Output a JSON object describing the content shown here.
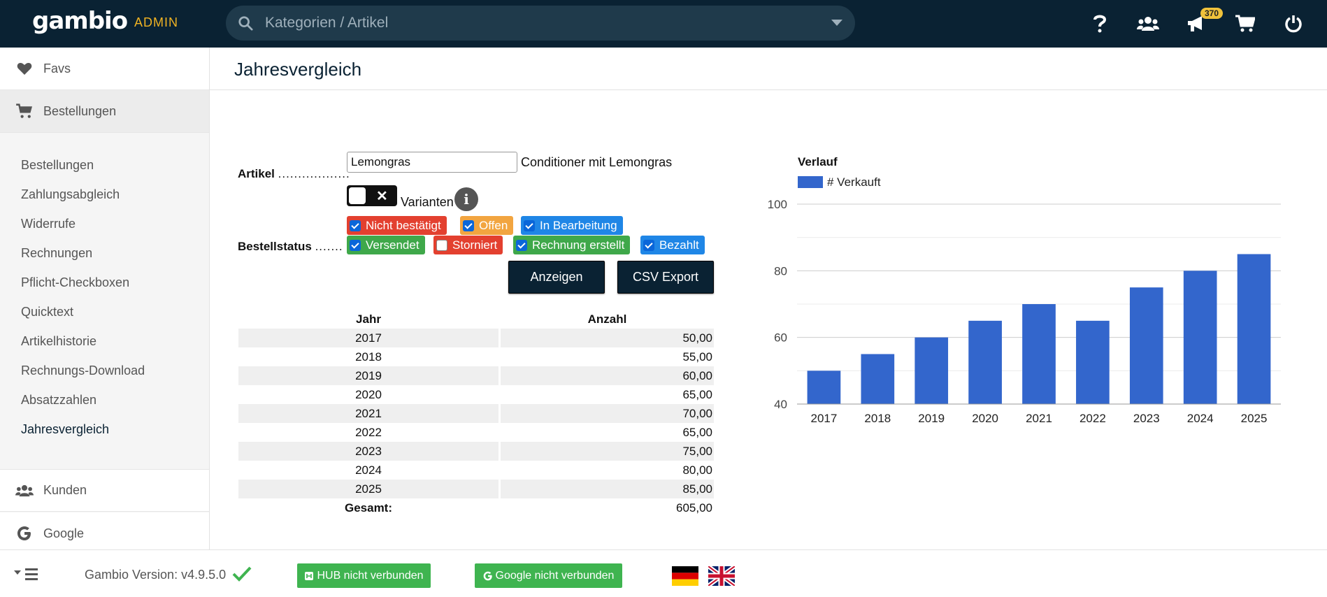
{
  "header": {
    "logo": "gambio",
    "admin_label": "ADMIN",
    "search_placeholder": "Kategorien / Artikel",
    "notification_count": "370"
  },
  "sidebar": {
    "favs": "Favs",
    "bestellungen": "Bestellungen",
    "sub_items": [
      "Bestellungen",
      "Zahlungsabgleich",
      "Widerrufe",
      "Rechnungen",
      "Pflicht-Checkboxen",
      "Quicktext",
      "Artikelhistorie",
      "Rechnungs-Download",
      "Absatzzahlen",
      "Jahresvergleich"
    ],
    "kunden": "Kunden",
    "google": "Google"
  },
  "page": {
    "title": "Jahresvergleich",
    "artikel_label": "Artikel",
    "artikel_dots": "..................",
    "artikel_value": "Lemongras",
    "artikel_desc": "Conditioner mit Lemongras",
    "varianten_label": "Varianten",
    "bestellstatus_label": "Bestellstatus",
    "bestellstatus_dots": ".......",
    "status_chips": [
      {
        "label": "Nicht bestätigt",
        "checked": true,
        "color": "#e3402f"
      },
      {
        "label": "Offen",
        "checked": true,
        "color": "#f2a540"
      },
      {
        "label": "In Bearbeitung",
        "checked": true,
        "color": "#1f86e6"
      },
      {
        "label": "Versendet",
        "checked": true,
        "color": "#3fa84a"
      },
      {
        "label": "Storniert",
        "checked": false,
        "color": "#e3402f"
      },
      {
        "label": "Rechnung erstellt",
        "checked": true,
        "color": "#3fa84a"
      },
      {
        "label": "Bezahlt",
        "checked": true,
        "color": "#1f86e6"
      }
    ],
    "btn_show": "Anzeigen",
    "btn_csv": "CSV Export"
  },
  "table": {
    "col_year": "Jahr",
    "col_count": "Anzahl",
    "rows": [
      {
        "year": "2017",
        "count": "50,00"
      },
      {
        "year": "2018",
        "count": "55,00"
      },
      {
        "year": "2019",
        "count": "60,00"
      },
      {
        "year": "2020",
        "count": "65,00"
      },
      {
        "year": "2021",
        "count": "70,00"
      },
      {
        "year": "2022",
        "count": "65,00"
      },
      {
        "year": "2023",
        "count": "75,00"
      },
      {
        "year": "2024",
        "count": "80,00"
      },
      {
        "year": "2025",
        "count": "85,00"
      }
    ],
    "total_label": "Gesamt:",
    "total_value": "605,00"
  },
  "chart_data": {
    "type": "bar",
    "title": "Verlauf",
    "categories": [
      "2017",
      "2018",
      "2019",
      "2020",
      "2021",
      "2022",
      "2023",
      "2024",
      "2025"
    ],
    "series": [
      {
        "name": "# Verkauft",
        "values": [
          50,
          55,
          60,
          65,
          70,
          65,
          75,
          80,
          85
        ],
        "color": "#3366cc"
      }
    ],
    "ylim": [
      40,
      100
    ],
    "yticks": [
      40,
      60,
      80,
      100
    ],
    "grid": true,
    "legend": "top-left"
  },
  "footer": {
    "version": "Gambio Version: v4.9.5.0",
    "hub": "HUB nicht verbunden",
    "google": "Google nicht verbunden"
  }
}
